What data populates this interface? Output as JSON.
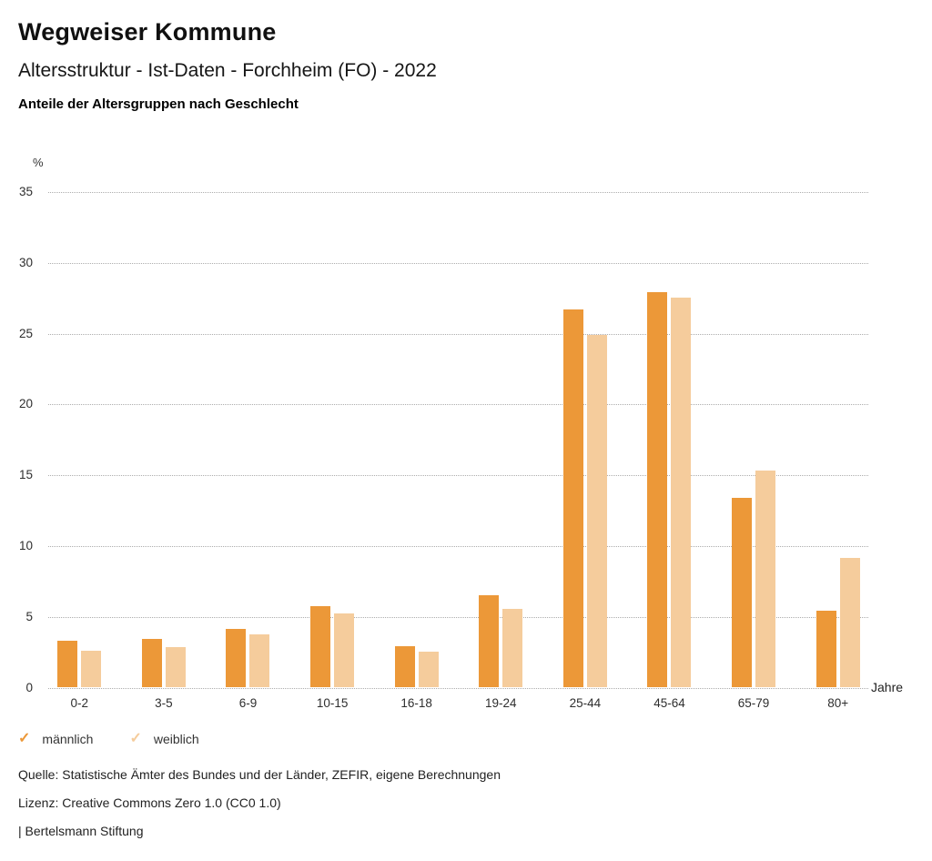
{
  "header": {
    "title": "Wegweiser Kommune",
    "subtitle": "Altersstruktur - Ist-Daten - Forchheim (FO) - 2022",
    "description": "Anteile der Altersgruppen nach Geschlecht"
  },
  "chart_data": {
    "type": "bar",
    "title": "Anteile der Altersgruppen nach Geschlecht",
    "categories": [
      "0-2",
      "3-5",
      "6-9",
      "10-15",
      "16-18",
      "19-24",
      "25-44",
      "45-64",
      "65-79",
      "80+"
    ],
    "series": [
      {
        "name": "männlich",
        "color": "#EC9838",
        "values": [
          3.3,
          3.4,
          4.1,
          5.7,
          2.9,
          6.5,
          26.7,
          27.9,
          13.4,
          5.4
        ]
      },
      {
        "name": "weiblich",
        "color": "#F5CC9C",
        "values": [
          2.6,
          2.8,
          3.7,
          5.2,
          2.5,
          5.5,
          24.9,
          27.5,
          15.3,
          9.1
        ]
      }
    ],
    "ylabel": "%",
    "xlabel": "Jahre",
    "ylim": [
      0,
      35
    ],
    "ytick_step": 5,
    "grid": "horizontal-dotted",
    "legend_position": "bottom-left"
  },
  "axes": {
    "y_unit": "%",
    "x_unit": "Jahre"
  },
  "legend": {
    "items": [
      {
        "label": "männlich",
        "color": "#EC9838",
        "marker": "check"
      },
      {
        "label": "weiblich",
        "color": "#F5CC9C",
        "marker": "check"
      }
    ]
  },
  "footer": {
    "source": "Quelle: Statistische Ämter des Bundes und der Länder, ZEFIR, eigene Berechnungen",
    "license": "Lizenz: Creative Commons Zero 1.0 (CC0 1.0)",
    "attribution": "| Bertelsmann Stiftung"
  }
}
